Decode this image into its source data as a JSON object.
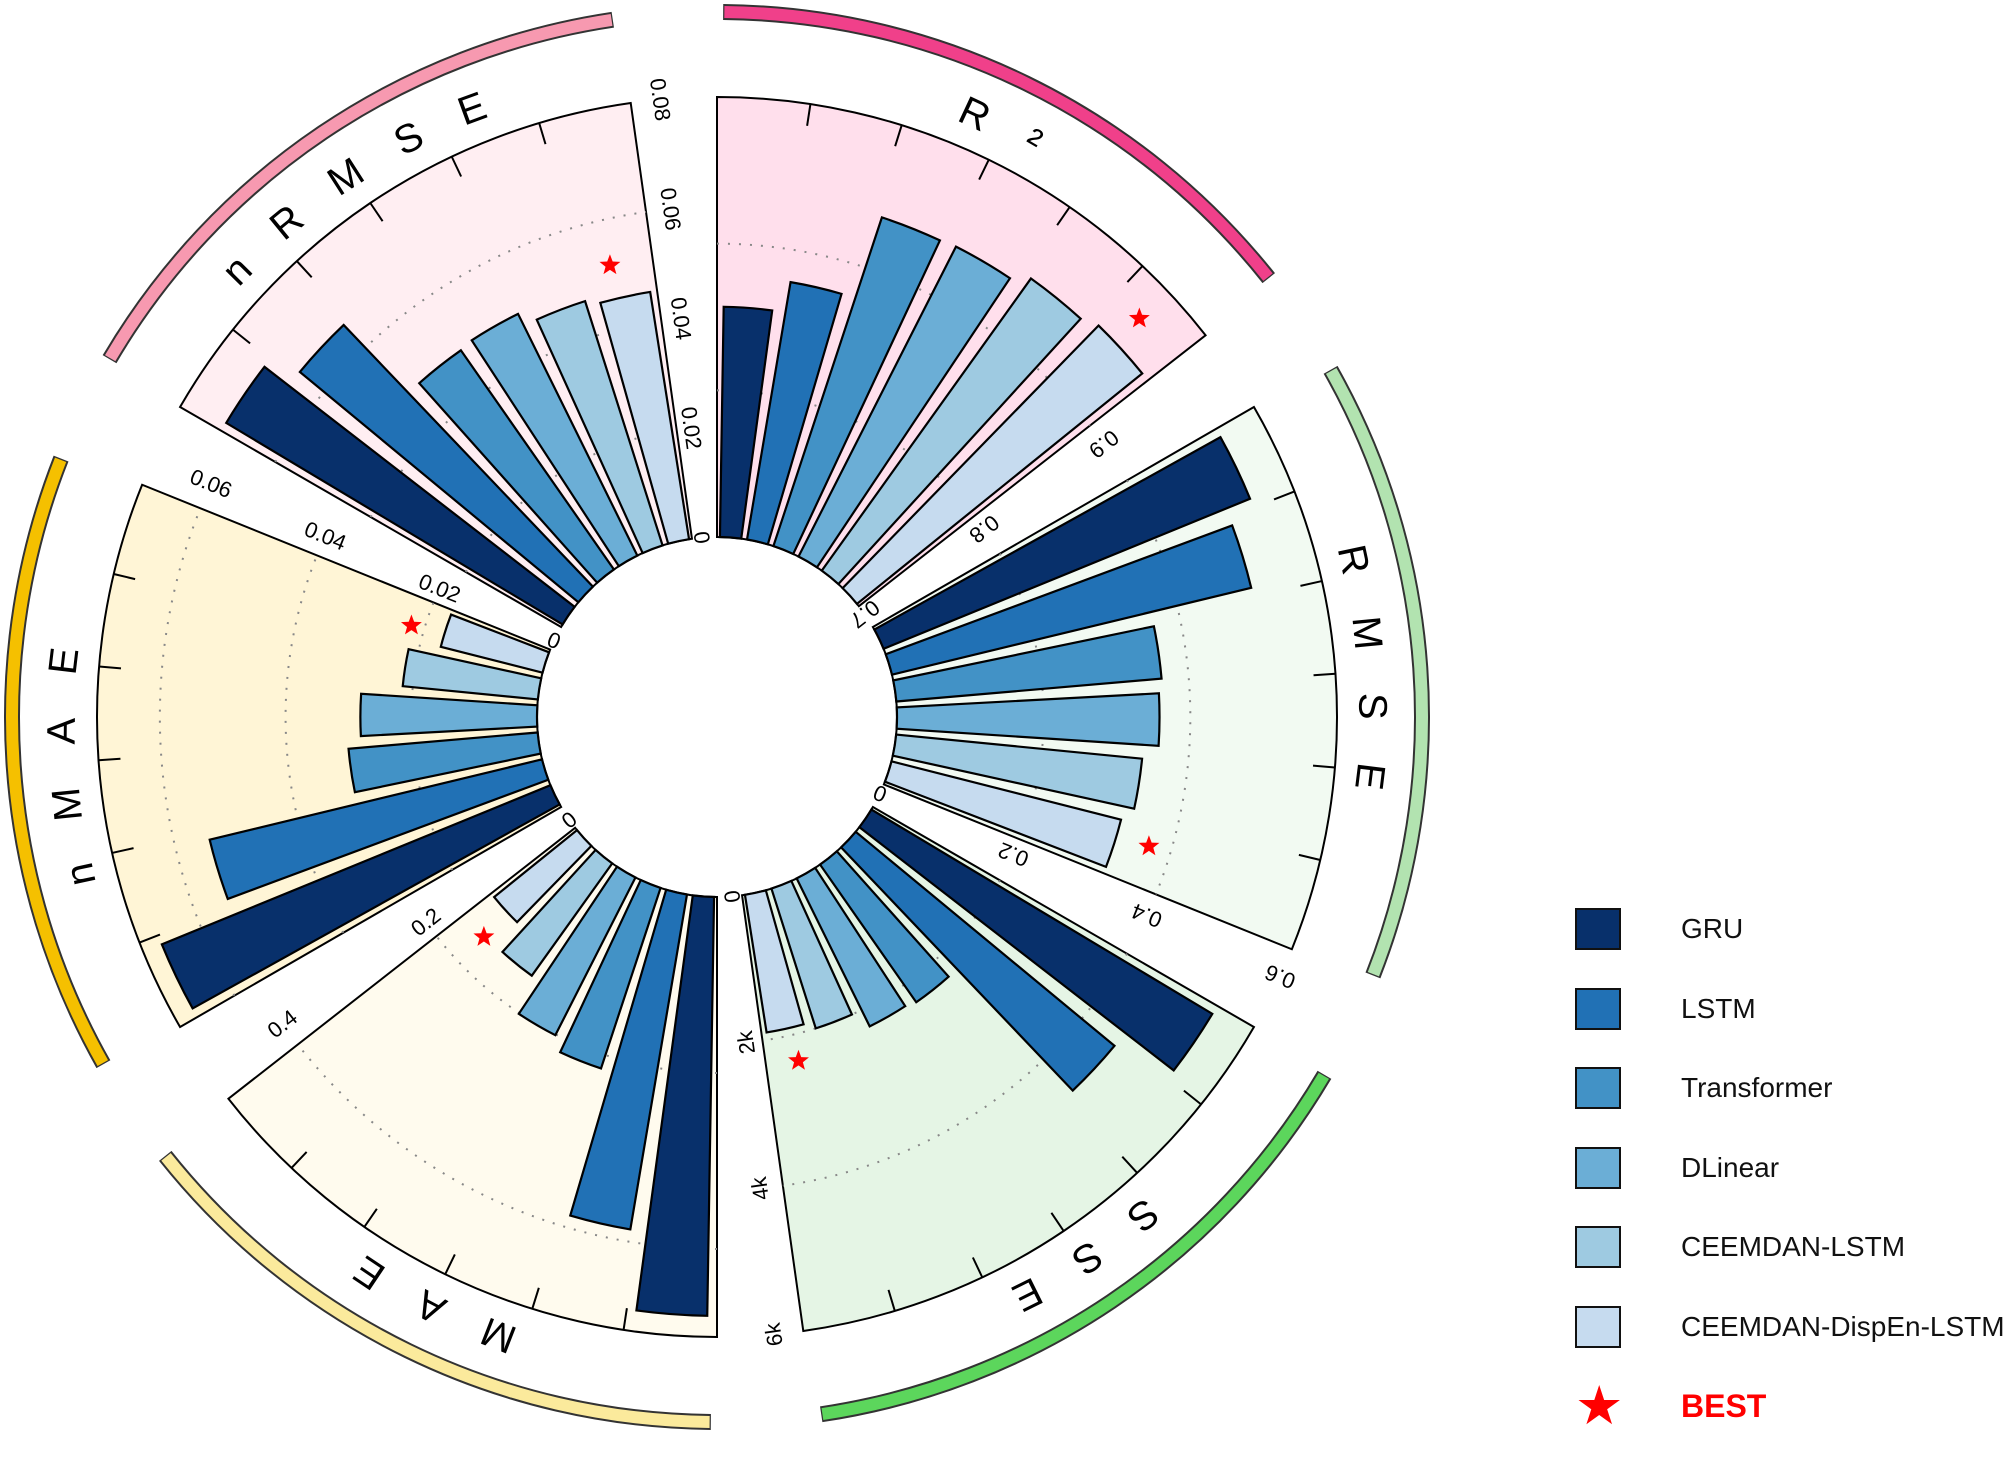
{
  "chart_data": {
    "type": "bar",
    "layout": "circular",
    "series_names": [
      "GRU",
      "LSTM",
      "Transformer",
      "DLinear",
      "CEEMDAN-LSTM",
      "CEEMDAN-DispEn-LSTM"
    ],
    "series_colors": [
      "#08306b",
      "#2171b5",
      "#4292c6",
      "#6baed6",
      "#9ecae1",
      "#c6dbef"
    ],
    "best_marker": {
      "label": "BEST",
      "color": "#ff0000",
      "icon": "star-icon"
    },
    "legend_position": "bottom-right",
    "metrics": [
      {
        "title": "R²",
        "ylim": [
          0.7,
          1.0
        ],
        "ticks": [
          0.7,
          0.8,
          0.9
        ],
        "tick_labels": [
          "0.7",
          "0.8",
          "0.9"
        ],
        "grid": [
          0.8,
          0.9
        ],
        "values": [
          0.857,
          0.878,
          0.936,
          0.937,
          0.945,
          0.95
        ],
        "best": 5,
        "bg": "#ffdfec",
        "arc": "#f0408a"
      },
      {
        "title": "RMSE",
        "ylim": [
          0,
          0.6
        ],
        "ticks": [
          0,
          0.2,
          0.4,
          0.6
        ],
        "tick_labels": [
          "0",
          "0.2",
          "0.4",
          "0.6"
        ],
        "grid": [
          0.2,
          0.4
        ],
        "values": [
          0.54,
          0.504,
          0.363,
          0.358,
          0.337,
          0.323
        ],
        "best": 5,
        "bg": "#f2faf2",
        "arc": "#b2e3b0"
      },
      {
        "title": "SSE",
        "ylim": [
          0,
          6000
        ],
        "ticks": [
          0,
          2000,
          4000,
          6000
        ],
        "tick_labels": [
          "0",
          "2k",
          "4k",
          "6k"
        ],
        "grid": [
          2000,
          4000
        ],
        "values": [
          5420,
          4580,
          2290,
          2250,
          2000,
          1900
        ],
        "best": 5,
        "bg": "#e5f5e5",
        "arc": "#5cd65c"
      },
      {
        "title": "MAE",
        "ylim": [
          0,
          0.5
        ],
        "ticks": [
          0,
          0.2,
          0.4
        ],
        "tick_labels": [
          "0",
          "0.2",
          "0.4"
        ],
        "grid": [
          0.2,
          0.4
        ],
        "values": [
          0.476,
          0.386,
          0.216,
          0.201,
          0.157,
          0.121
        ],
        "best": 5,
        "bg": "#fffbee",
        "arc": "#fbea9c"
      },
      {
        "title": "nMAE",
        "ylim": [
          0,
          0.07
        ],
        "ticks": [
          0,
          0.02,
          0.04,
          0.06
        ],
        "tick_labels": [
          "0",
          "0.02",
          "0.04",
          "0.06"
        ],
        "grid": [
          0.02,
          0.04,
          0.06
        ],
        "values": [
          0.0668,
          0.0544,
          0.0302,
          0.0281,
          0.0216,
          0.0167
        ],
        "best": 5,
        "bg": "#fff5d6",
        "arc": "#f5c000"
      },
      {
        "title": "nRMSE",
        "ylim": [
          0,
          0.08
        ],
        "ticks": [
          0,
          0.02,
          0.04,
          0.06,
          0.08
        ],
        "tick_labels": [
          "0",
          "0.02",
          "0.04",
          "0.06",
          "0.08"
        ],
        "grid": [
          0.02,
          0.04,
          0.06
        ],
        "values": [
          0.0713,
          0.0657,
          0.0486,
          0.049,
          0.0466,
          0.0455
        ],
        "best": 5,
        "bg": "#ffeef2",
        "arc": "#f799b0"
      }
    ]
  },
  "legend": {
    "items": [
      {
        "label": "GRU"
      },
      {
        "label": "LSTM"
      },
      {
        "label": "Transformer"
      },
      {
        "label": "DLinear"
      },
      {
        "label": "CEEMDAN-LSTM"
      },
      {
        "label": "CEEMDAN-DispEn-LSTM"
      }
    ],
    "best_label": "BEST"
  }
}
